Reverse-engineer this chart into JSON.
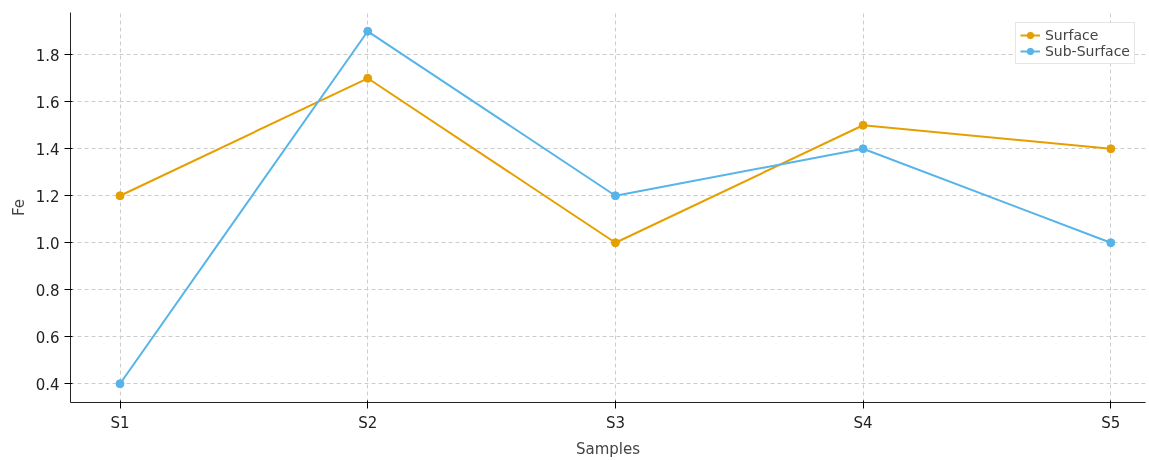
{
  "chart_data": {
    "type": "line",
    "xlabel": "Samples",
    "ylabel": "Fe",
    "categories": [
      "S1",
      "S2",
      "S3",
      "S4",
      "S5"
    ],
    "series": [
      {
        "name": "Surface",
        "color": "#e69f00",
        "values": [
          1.2,
          1.7,
          1.0,
          1.5,
          1.4
        ]
      },
      {
        "name": "Sub-Surface",
        "color": "#56b4e9",
        "values": [
          0.4,
          1.9,
          1.2,
          1.4,
          1.0
        ]
      }
    ],
    "ylim": [
      0.32,
      1.98
    ],
    "yticks": [
      0.4,
      0.6,
      0.8,
      {
        "value": 1.0,
        "label": "1.0"
      },
      1.2,
      1.4,
      1.6,
      1.8
    ],
    "grid": true,
    "legend": "top right",
    "marker": "circle",
    "line_style": "solid"
  }
}
